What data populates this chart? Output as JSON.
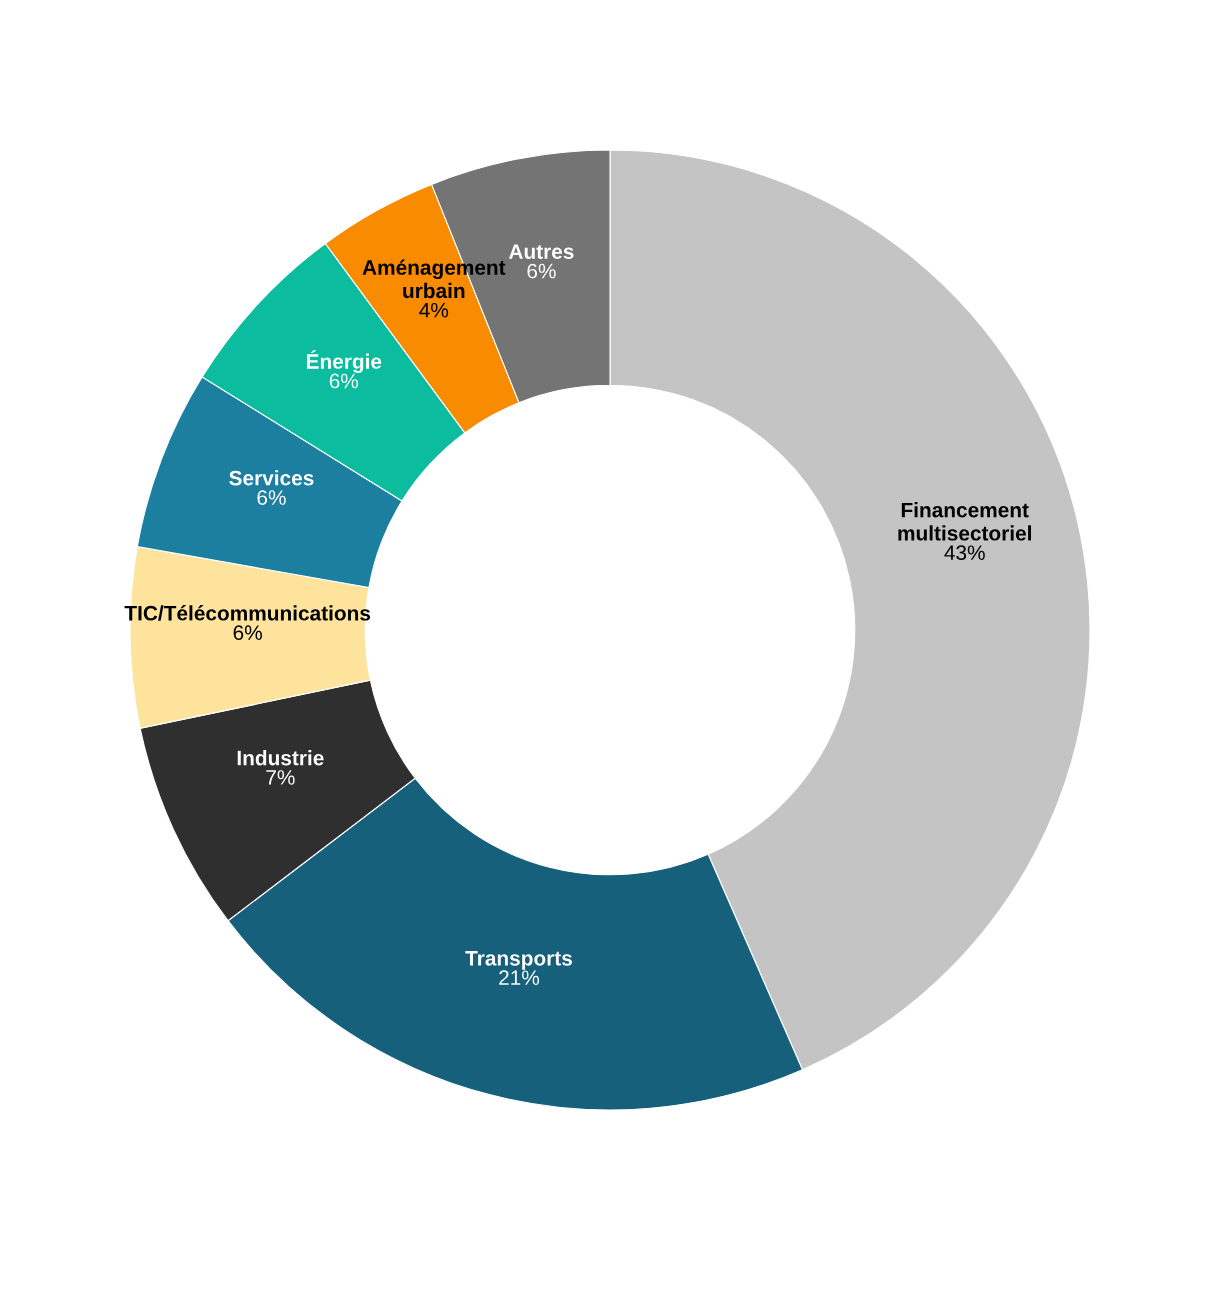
{
  "chart_data": {
    "type": "donut",
    "categories": [
      "Financement\nmultisectoriel",
      "Transports",
      "Industrie",
      "TIC/Télécommunications",
      "Services",
      "Énergie",
      "Aménagement\nurbain",
      "Autres"
    ],
    "values": [
      43,
      21,
      7,
      6,
      6,
      6,
      4,
      6
    ],
    "value_labels": [
      "43%",
      "21%",
      "7%",
      "6%",
      "6%",
      "6%",
      "4%",
      "6%"
    ],
    "colors": [
      "#c4c4c4",
      "#17607c",
      "#2f2f2f",
      "#fee39d",
      "#1d7fa0",
      "#0bbd9e",
      "#f98b00",
      "#747474"
    ]
  }
}
